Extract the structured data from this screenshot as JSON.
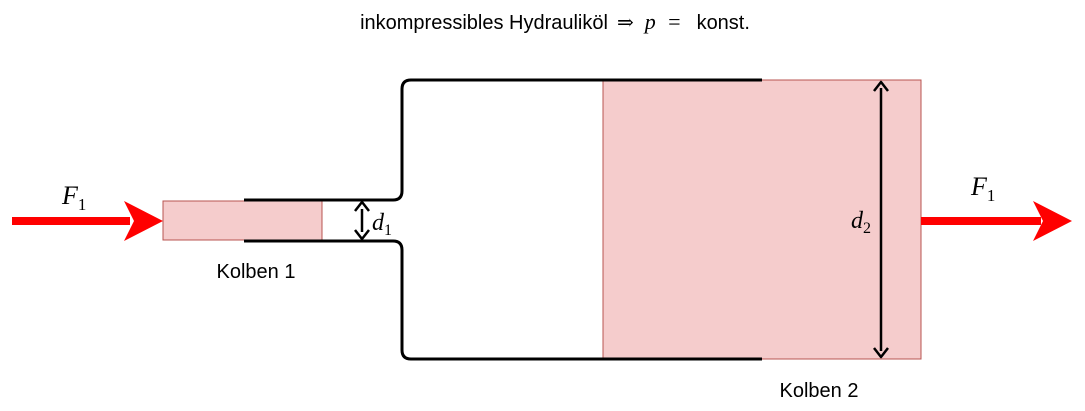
{
  "title": {
    "text": "inkompressibles Hydrauliköl",
    "arrow": "⇒",
    "variable": "p",
    "equals": "=",
    "rest": "konst."
  },
  "labels": {
    "force_left": {
      "symbol": "F",
      "sub": "1"
    },
    "force_right": {
      "symbol": "F",
      "sub": "1"
    },
    "d1": {
      "symbol": "d",
      "sub": "1"
    },
    "d2": {
      "symbol": "d",
      "sub": "2"
    },
    "piston1": "Kolben 1",
    "piston2": "Kolben 2"
  },
  "colors": {
    "piston_fill": "#f5cccc",
    "piston_stroke": "#b85450",
    "force_arrow": "#ff0000",
    "cylinder_wall": "#000000"
  },
  "icons": {
    "force_left": "right-arrow-icon",
    "force_right": "right-arrow-icon",
    "d1_dimension": "double-arrow-icon",
    "d2_dimension": "double-arrow-icon"
  }
}
